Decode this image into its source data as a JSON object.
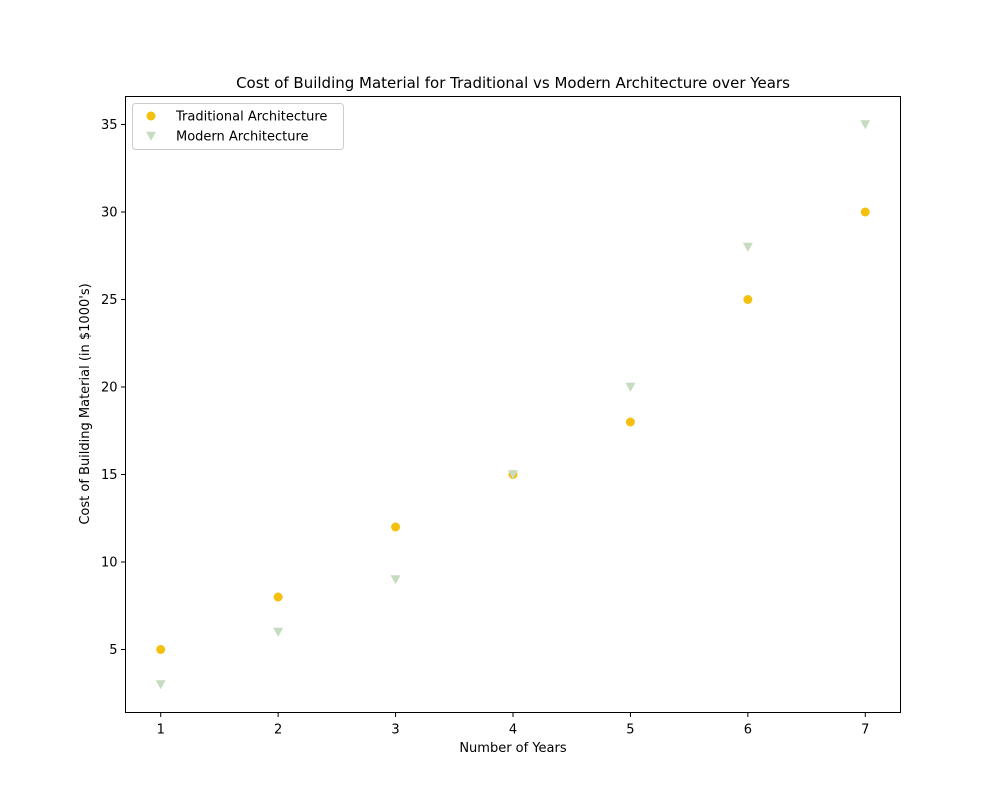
{
  "chart_data": {
    "type": "scatter",
    "title": "Cost of Building Material for Traditional vs Modern Architecture over Years",
    "xlabel": "Number of Years",
    "ylabel": "Cost of Building Material (in $1000's)",
    "x": [
      1,
      2,
      3,
      4,
      5,
      6,
      7
    ],
    "xlim": [
      0.7,
      7.3
    ],
    "ylim": [
      1.4,
      36.6
    ],
    "xticks": [
      1,
      2,
      3,
      4,
      5,
      6,
      7
    ],
    "yticks": [
      5,
      10,
      15,
      20,
      25,
      30,
      35
    ],
    "grid": false,
    "legend": "upper left",
    "series": [
      {
        "name": "Traditional Architecture",
        "values": [
          5,
          8,
          12,
          15,
          18,
          25,
          30
        ],
        "marker": "circle",
        "color": "#f5bf0f"
      },
      {
        "name": "Modern Architecture",
        "values": [
          3,
          6,
          9,
          15,
          20,
          28,
          35
        ],
        "marker": "triangle-down",
        "color": "#c6dcc0"
      }
    ]
  }
}
